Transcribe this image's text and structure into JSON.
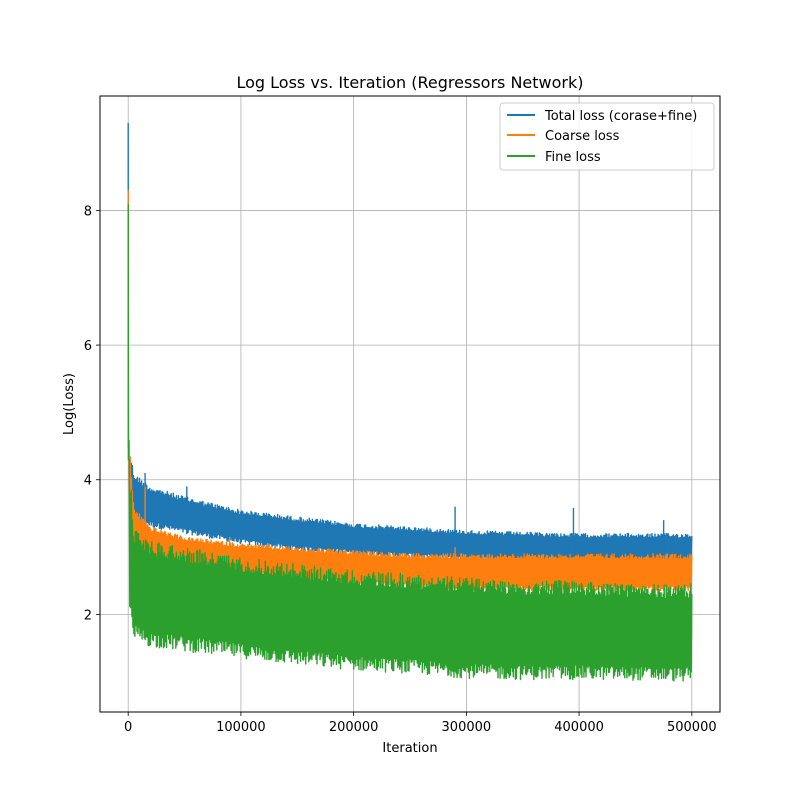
{
  "chart_data": {
    "type": "line",
    "title": "Log Loss vs. Iteration (Regressors Network)",
    "xlabel": "Iteration",
    "ylabel": "Log(Loss)",
    "xlim": [
      -25000,
      525000
    ],
    "ylim": [
      0.55,
      9.7
    ],
    "xticks": [
      0,
      100000,
      200000,
      300000,
      400000,
      500000
    ],
    "xtick_labels": [
      "0",
      "100000",
      "200000",
      "300000",
      "400000",
      "500000"
    ],
    "yticks": [
      2,
      4,
      6,
      8
    ],
    "ytick_labels": [
      "2",
      "4",
      "6",
      "8"
    ],
    "grid": true,
    "legend_position": "top-right",
    "series": [
      {
        "name": "Total loss (corase+fine)",
        "color": "#1f77b4",
        "peak": [
          0,
          9.3
        ],
        "upper": [
          [
            1000,
            4.5
          ],
          [
            5000,
            4.1
          ],
          [
            20000,
            3.9
          ],
          [
            50000,
            3.75
          ],
          [
            100000,
            3.55
          ],
          [
            150000,
            3.45
          ],
          [
            200000,
            3.35
          ],
          [
            250000,
            3.3
          ],
          [
            300000,
            3.25
          ],
          [
            350000,
            3.22
          ],
          [
            400000,
            3.2
          ],
          [
            450000,
            3.2
          ],
          [
            500000,
            3.2
          ]
        ],
        "lower": [
          [
            1000,
            3.7
          ],
          [
            5000,
            3.4
          ],
          [
            20000,
            3.3
          ],
          [
            50000,
            3.2
          ],
          [
            100000,
            3.05
          ],
          [
            150000,
            2.95
          ],
          [
            200000,
            2.9
          ],
          [
            250000,
            2.85
          ],
          [
            300000,
            2.8
          ],
          [
            350000,
            2.8
          ],
          [
            400000,
            2.75
          ],
          [
            450000,
            2.75
          ],
          [
            500000,
            2.75
          ]
        ],
        "spikes": [
          [
            15000,
            4.1
          ],
          [
            52000,
            3.9
          ],
          [
            290000,
            3.6
          ],
          [
            395000,
            3.58
          ],
          [
            475000,
            3.4
          ]
        ]
      },
      {
        "name": "Coarse loss",
        "color": "#ff7f0e",
        "peak": [
          0,
          8.3
        ],
        "upper": [
          [
            1000,
            4.6
          ],
          [
            5000,
            3.6
          ],
          [
            20000,
            3.3
          ],
          [
            50000,
            3.15
          ],
          [
            100000,
            3.05
          ],
          [
            150000,
            3.0
          ],
          [
            200000,
            2.95
          ],
          [
            250000,
            2.9
          ],
          [
            300000,
            2.9
          ],
          [
            350000,
            2.9
          ],
          [
            400000,
            2.9
          ],
          [
            450000,
            2.9
          ],
          [
            500000,
            2.9
          ]
        ],
        "lower": [
          [
            1000,
            3.0
          ],
          [
            5000,
            2.9
          ],
          [
            20000,
            2.8
          ],
          [
            50000,
            2.7
          ],
          [
            100000,
            2.6
          ],
          [
            150000,
            2.5
          ],
          [
            200000,
            2.45
          ],
          [
            250000,
            2.4
          ],
          [
            300000,
            2.35
          ],
          [
            350000,
            2.35
          ],
          [
            400000,
            2.35
          ],
          [
            450000,
            2.35
          ],
          [
            500000,
            2.35
          ]
        ],
        "spikes": [
          [
            15000,
            3.9
          ],
          [
            90000,
            3.15
          ],
          [
            290000,
            3.0
          ]
        ]
      },
      {
        "name": "Fine loss",
        "color": "#2ca02c",
        "peak": [
          0,
          8.1
        ],
        "upper": [
          [
            1000,
            4.3
          ],
          [
            5000,
            3.3
          ],
          [
            20000,
            3.1
          ],
          [
            50000,
            3.0
          ],
          [
            100000,
            2.85
          ],
          [
            150000,
            2.75
          ],
          [
            200000,
            2.65
          ],
          [
            250000,
            2.6
          ],
          [
            300000,
            2.55
          ],
          [
            350000,
            2.5
          ],
          [
            400000,
            2.5
          ],
          [
            450000,
            2.45
          ],
          [
            500000,
            2.45
          ]
        ],
        "lower": [
          [
            1000,
            1.9
          ],
          [
            5000,
            1.6
          ],
          [
            20000,
            1.52
          ],
          [
            50000,
            1.45
          ],
          [
            100000,
            1.35
          ],
          [
            150000,
            1.25
          ],
          [
            200000,
            1.17
          ],
          [
            250000,
            1.12
          ],
          [
            300000,
            1.05
          ],
          [
            350000,
            1.03
          ],
          [
            400000,
            1.03
          ],
          [
            450000,
            1.02
          ],
          [
            500000,
            1.0
          ]
        ],
        "spikes": []
      }
    ]
  }
}
